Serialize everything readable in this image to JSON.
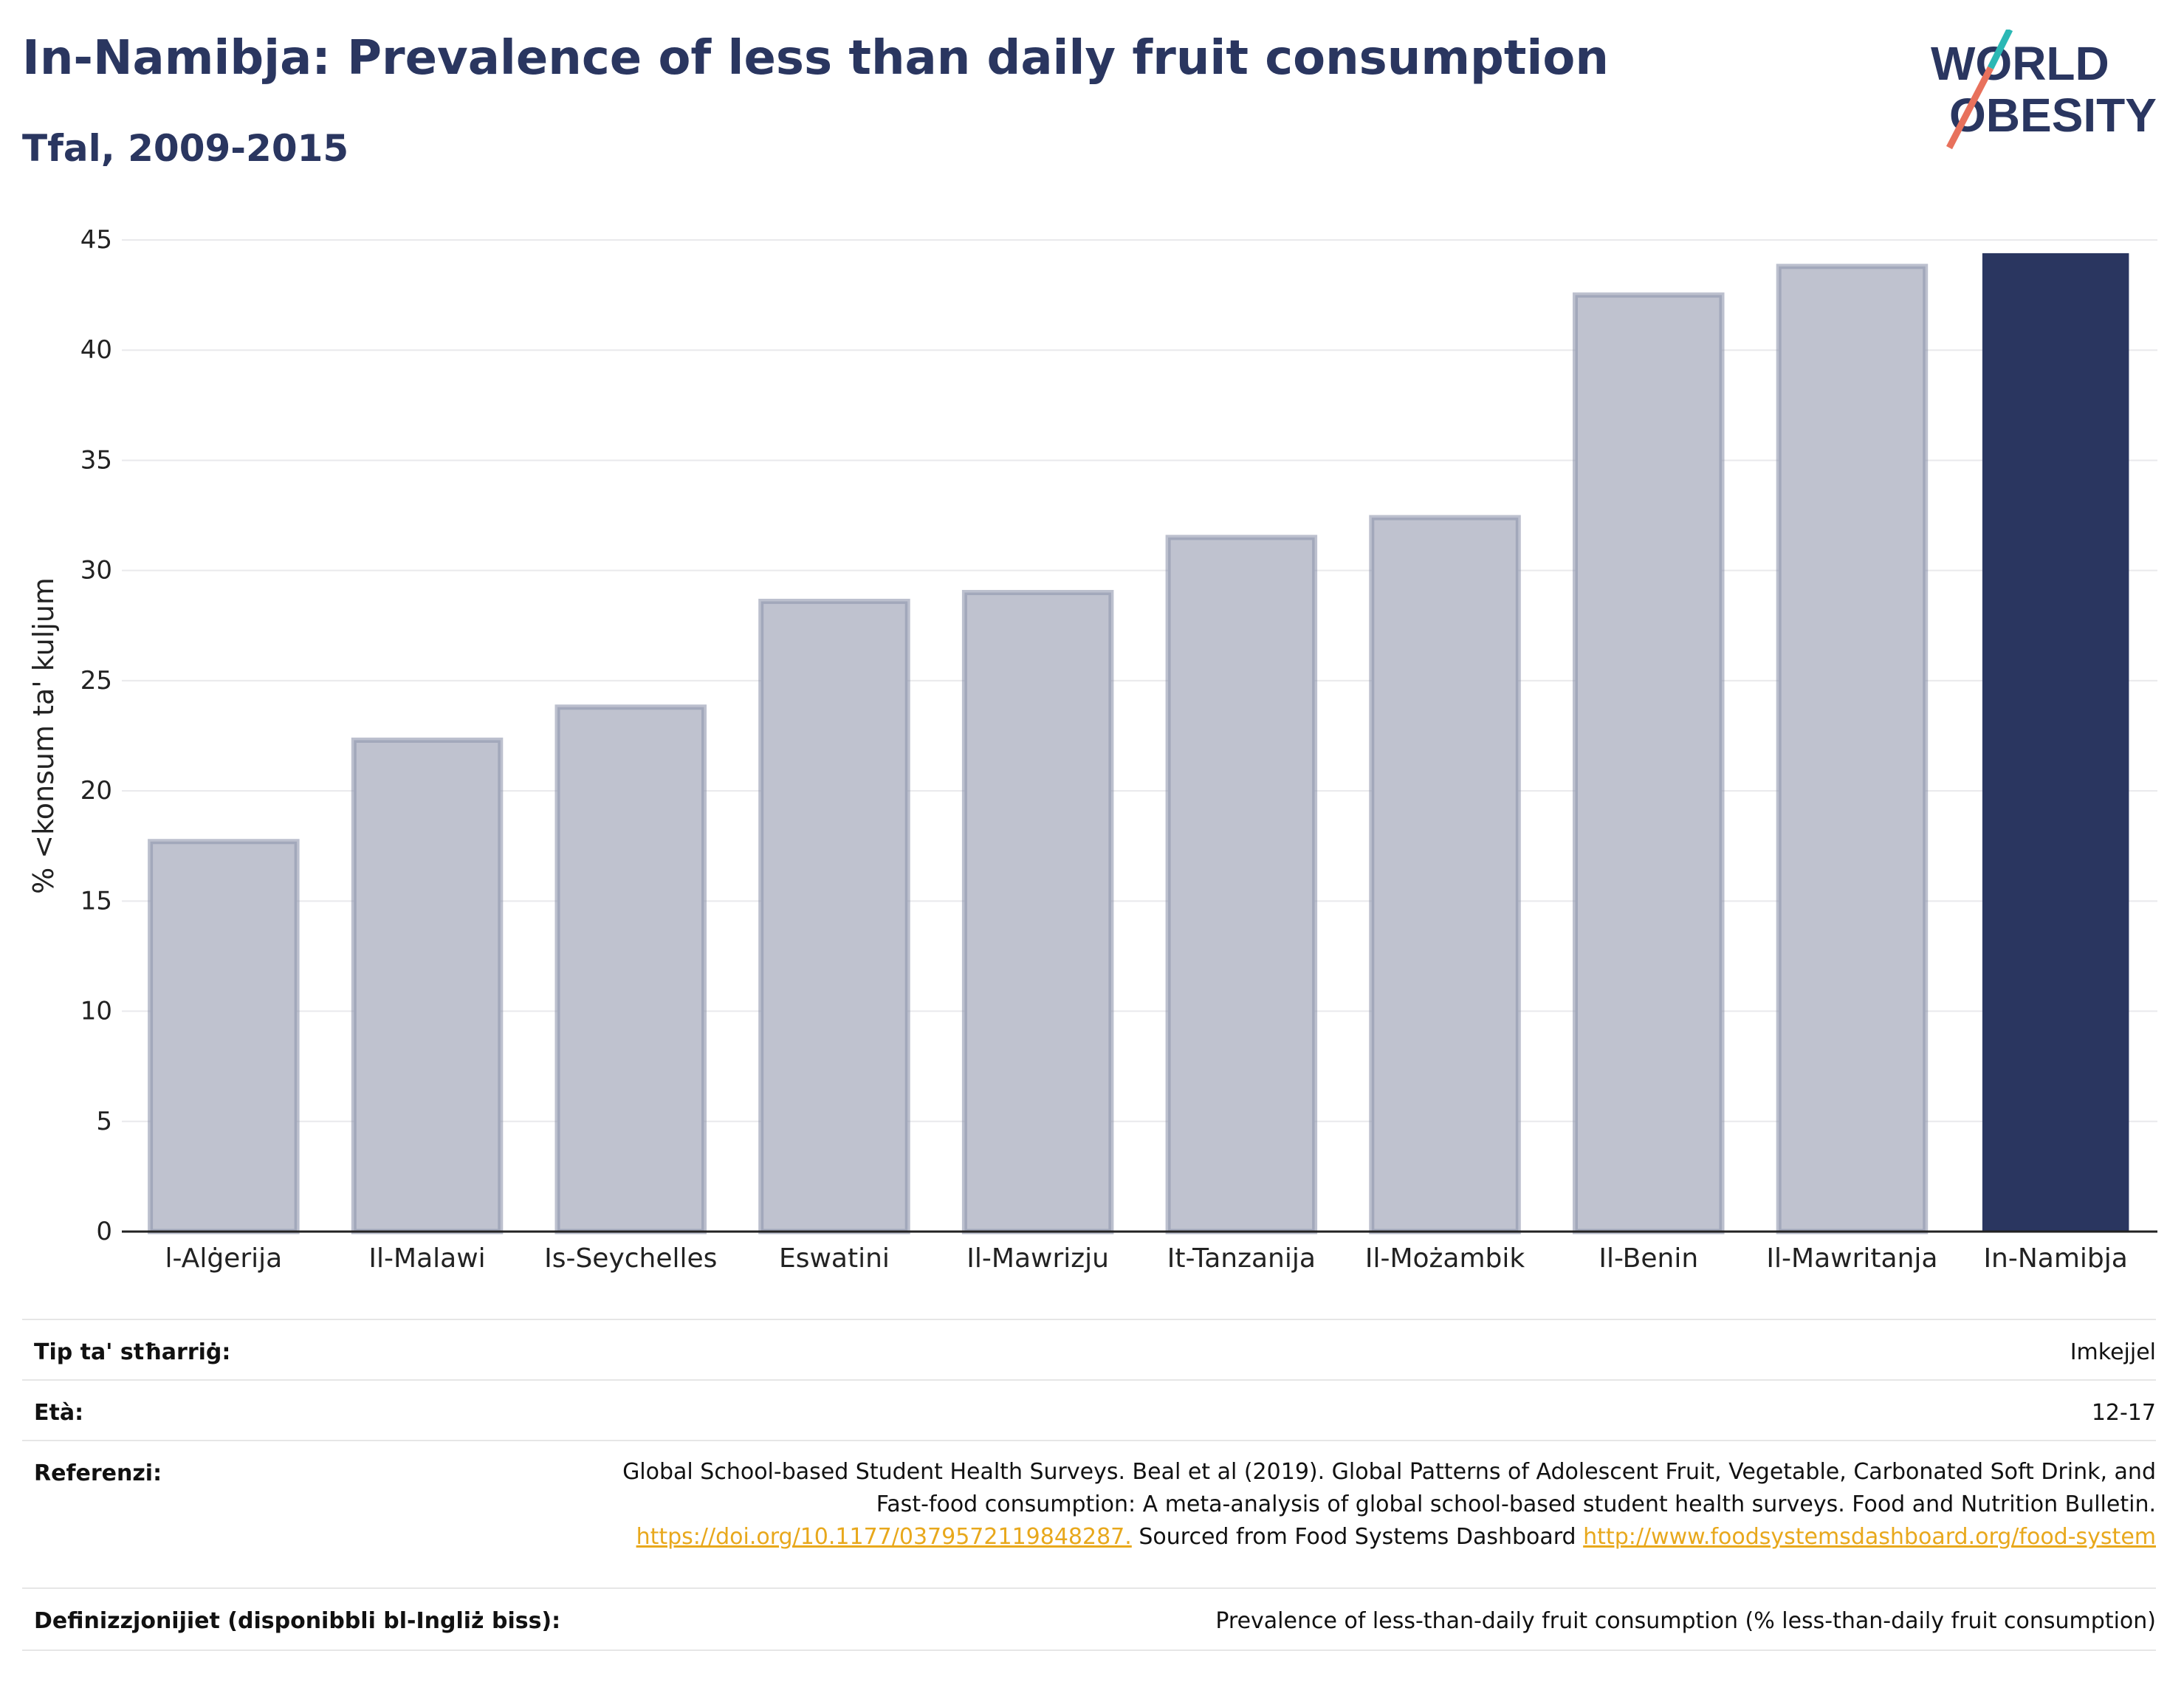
{
  "title": "In-Namibja: Prevalence of less than daily fruit consumption",
  "subtitle": "Tfal, 2009-2015",
  "logo": {
    "line1": "WORLD",
    "line2": "OBESITY",
    "colors": [
      "#2a3660",
      "#2bb8b5",
      "#e8715c"
    ]
  },
  "chart_data": {
    "type": "bar",
    "ylabel": "% <konsum ta' kuljum",
    "xlabel": "",
    "ylim": [
      0,
      45
    ],
    "yticks": [
      0,
      5,
      10,
      15,
      20,
      25,
      30,
      35,
      40,
      45
    ],
    "grid": true,
    "categories": [
      "l-Alġerija",
      "Il-Malawi",
      "Is-Seychelles",
      "Eswatini",
      "Il-Mawrizju",
      "It-Tanzanija",
      "Il-Możambik",
      "Il-Benin",
      "Il-Mawritanja",
      "In-Namibja"
    ],
    "values": [
      17.7,
      22.3,
      23.8,
      28.6,
      29.0,
      31.5,
      32.4,
      42.5,
      43.8,
      44.4
    ],
    "highlight": "In-Namibja",
    "colors": {
      "bar": "#bfc2cf",
      "bar_border": "#8f96ae",
      "highlight": "#2a3660",
      "grid": "#e9e9ec",
      "axis": "#222222"
    }
  },
  "meta": {
    "type_label": "Tip ta' stħarriġ:",
    "type_value": "Imkejjel",
    "age_label": "Età:",
    "age_value": "12-17",
    "ref_label": "Referenzi:",
    "ref_text_1": "Global School-based Student Health Surveys. Beal et al (2019). Global Patterns of Adolescent Fruit, Vegetable, Carbonated Soft Drink, and Fast-food consumption: A meta-analysis of global school-based student health surveys. Food and Nutrition Bulletin.",
    "ref_link_1": "https://doi.org/10.1177/0379572119848287.",
    "ref_text_2": "Sourced from Food Systems Dashboard",
    "ref_link_2": "http://www.foodsystemsdashboard.org/food-system",
    "def_label": "Definizzjonijiet (disponibbli bl-Ingliż biss):",
    "def_value": "Prevalence of less-than-daily fruit consumption (% less-than-daily fruit consumption)"
  }
}
